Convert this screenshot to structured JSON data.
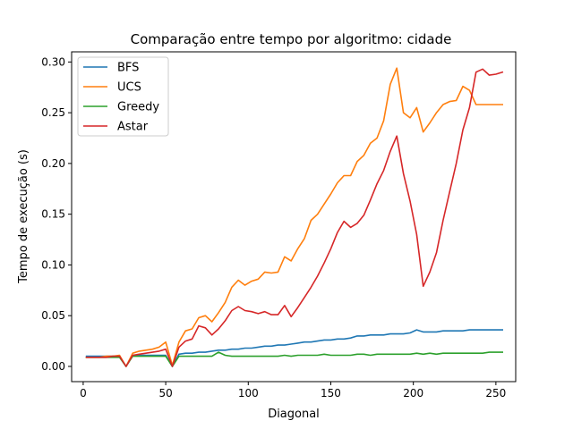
{
  "chart_data": {
    "type": "line",
    "title": "Comparação entre tempo por algoritmo: cidade",
    "xlabel": "Diagonal",
    "ylabel": "Tempo de execução (s)",
    "xlim": [
      -7,
      262
    ],
    "ylim": [
      -0.015,
      0.31
    ],
    "xticks": [
      0,
      50,
      100,
      150,
      200,
      250
    ],
    "yticks": [
      0.0,
      0.05,
      0.1,
      0.15,
      0.2,
      0.25,
      0.3
    ],
    "xtick_labels": [
      "0",
      "50",
      "100",
      "150",
      "200",
      "250"
    ],
    "ytick_labels": [
      "0.00",
      "0.05",
      "0.10",
      "0.15",
      "0.20",
      "0.25",
      "0.30"
    ],
    "grid": false,
    "legend_position": "top-left",
    "series": [
      {
        "name": "BFS",
        "color": "#1f77b4",
        "points": [
          [
            2,
            0.01
          ],
          [
            10,
            0.01
          ],
          [
            14,
            0.01
          ],
          [
            18,
            0.01
          ],
          [
            22,
            0.01
          ],
          [
            26,
            0.0
          ],
          [
            30,
            0.011
          ],
          [
            34,
            0.011
          ],
          [
            38,
            0.011
          ],
          [
            42,
            0.011
          ],
          [
            46,
            0.011
          ],
          [
            50,
            0.011
          ],
          [
            54,
            0.0
          ],
          [
            58,
            0.012
          ],
          [
            62,
            0.013
          ],
          [
            66,
            0.013
          ],
          [
            70,
            0.014
          ],
          [
            74,
            0.014
          ],
          [
            78,
            0.015
          ],
          [
            82,
            0.016
          ],
          [
            86,
            0.016
          ],
          [
            90,
            0.017
          ],
          [
            94,
            0.017
          ],
          [
            98,
            0.018
          ],
          [
            102,
            0.018
          ],
          [
            106,
            0.019
          ],
          [
            110,
            0.02
          ],
          [
            114,
            0.02
          ],
          [
            118,
            0.021
          ],
          [
            122,
            0.021
          ],
          [
            126,
            0.022
          ],
          [
            130,
            0.023
          ],
          [
            134,
            0.024
          ],
          [
            138,
            0.024
          ],
          [
            142,
            0.025
          ],
          [
            146,
            0.026
          ],
          [
            150,
            0.026
          ],
          [
            154,
            0.027
          ],
          [
            158,
            0.027
          ],
          [
            162,
            0.028
          ],
          [
            166,
            0.03
          ],
          [
            170,
            0.03
          ],
          [
            174,
            0.031
          ],
          [
            178,
            0.031
          ],
          [
            182,
            0.031
          ],
          [
            186,
            0.032
          ],
          [
            190,
            0.032
          ],
          [
            194,
            0.032
          ],
          [
            198,
            0.033
          ],
          [
            202,
            0.036
          ],
          [
            206,
            0.034
          ],
          [
            210,
            0.034
          ],
          [
            214,
            0.034
          ],
          [
            218,
            0.035
          ],
          [
            222,
            0.035
          ],
          [
            226,
            0.035
          ],
          [
            230,
            0.035
          ],
          [
            234,
            0.036
          ],
          [
            238,
            0.036
          ],
          [
            242,
            0.036
          ],
          [
            246,
            0.036
          ],
          [
            250,
            0.036
          ],
          [
            254,
            0.036
          ]
        ]
      },
      {
        "name": "UCS",
        "color": "#ff7f0e",
        "points": [
          [
            2,
            0.009
          ],
          [
            10,
            0.009
          ],
          [
            14,
            0.01
          ],
          [
            18,
            0.01
          ],
          [
            22,
            0.011
          ],
          [
            26,
            0.0
          ],
          [
            30,
            0.013
          ],
          [
            34,
            0.015
          ],
          [
            38,
            0.016
          ],
          [
            42,
            0.017
          ],
          [
            46,
            0.019
          ],
          [
            50,
            0.024
          ],
          [
            54,
            0.001
          ],
          [
            58,
            0.024
          ],
          [
            62,
            0.035
          ],
          [
            66,
            0.037
          ],
          [
            70,
            0.048
          ],
          [
            74,
            0.05
          ],
          [
            78,
            0.044
          ],
          [
            82,
            0.053
          ],
          [
            86,
            0.063
          ],
          [
            90,
            0.078
          ],
          [
            94,
            0.085
          ],
          [
            98,
            0.08
          ],
          [
            102,
            0.084
          ],
          [
            106,
            0.086
          ],
          [
            110,
            0.093
          ],
          [
            114,
            0.092
          ],
          [
            118,
            0.093
          ],
          [
            122,
            0.108
          ],
          [
            126,
            0.104
          ],
          [
            130,
            0.116
          ],
          [
            134,
            0.126
          ],
          [
            138,
            0.144
          ],
          [
            142,
            0.15
          ],
          [
            146,
            0.16
          ],
          [
            150,
            0.17
          ],
          [
            154,
            0.181
          ],
          [
            158,
            0.188
          ],
          [
            162,
            0.188
          ],
          [
            166,
            0.202
          ],
          [
            170,
            0.208
          ],
          [
            174,
            0.22
          ],
          [
            178,
            0.225
          ],
          [
            182,
            0.242
          ],
          [
            186,
            0.278
          ],
          [
            190,
            0.294
          ],
          [
            194,
            0.25
          ],
          [
            198,
            0.245
          ],
          [
            202,
            0.255
          ],
          [
            206,
            0.231
          ],
          [
            210,
            0.24
          ],
          [
            214,
            0.25
          ],
          [
            218,
            0.258
          ],
          [
            222,
            0.261
          ],
          [
            226,
            0.262
          ],
          [
            230,
            0.276
          ],
          [
            234,
            0.272
          ],
          [
            238,
            0.258
          ],
          [
            242,
            0.258
          ],
          [
            246,
            0.258
          ],
          [
            250,
            0.258
          ],
          [
            254,
            0.258
          ]
        ]
      },
      {
        "name": "Greedy",
        "color": "#2ca02c",
        "points": [
          [
            2,
            0.009
          ],
          [
            10,
            0.009
          ],
          [
            14,
            0.009
          ],
          [
            18,
            0.009
          ],
          [
            22,
            0.009
          ],
          [
            26,
            0.0
          ],
          [
            30,
            0.01
          ],
          [
            34,
            0.01
          ],
          [
            38,
            0.01
          ],
          [
            42,
            0.01
          ],
          [
            46,
            0.01
          ],
          [
            50,
            0.01
          ],
          [
            54,
            0.0
          ],
          [
            58,
            0.01
          ],
          [
            62,
            0.01
          ],
          [
            66,
            0.01
          ],
          [
            70,
            0.01
          ],
          [
            74,
            0.01
          ],
          [
            78,
            0.01
          ],
          [
            82,
            0.014
          ],
          [
            86,
            0.011
          ],
          [
            90,
            0.01
          ],
          [
            94,
            0.01
          ],
          [
            98,
            0.01
          ],
          [
            102,
            0.01
          ],
          [
            106,
            0.01
          ],
          [
            110,
            0.01
          ],
          [
            114,
            0.01
          ],
          [
            118,
            0.01
          ],
          [
            122,
            0.011
          ],
          [
            126,
            0.01
          ],
          [
            130,
            0.011
          ],
          [
            134,
            0.011
          ],
          [
            138,
            0.011
          ],
          [
            142,
            0.011
          ],
          [
            146,
            0.012
          ],
          [
            150,
            0.011
          ],
          [
            154,
            0.011
          ],
          [
            158,
            0.011
          ],
          [
            162,
            0.011
          ],
          [
            166,
            0.012
          ],
          [
            170,
            0.012
          ],
          [
            174,
            0.011
          ],
          [
            178,
            0.012
          ],
          [
            182,
            0.012
          ],
          [
            186,
            0.012
          ],
          [
            190,
            0.012
          ],
          [
            194,
            0.012
          ],
          [
            198,
            0.012
          ],
          [
            202,
            0.013
          ],
          [
            206,
            0.012
          ],
          [
            210,
            0.013
          ],
          [
            214,
            0.012
          ],
          [
            218,
            0.013
          ],
          [
            222,
            0.013
          ],
          [
            226,
            0.013
          ],
          [
            230,
            0.013
          ],
          [
            234,
            0.013
          ],
          [
            238,
            0.013
          ],
          [
            242,
            0.013
          ],
          [
            246,
            0.014
          ],
          [
            250,
            0.014
          ],
          [
            254,
            0.014
          ]
        ]
      },
      {
        "name": "Astar",
        "color": "#d62728",
        "points": [
          [
            2,
            0.009
          ],
          [
            10,
            0.009
          ],
          [
            14,
            0.009
          ],
          [
            18,
            0.01
          ],
          [
            22,
            0.01
          ],
          [
            26,
            0.0
          ],
          [
            30,
            0.011
          ],
          [
            34,
            0.012
          ],
          [
            38,
            0.013
          ],
          [
            42,
            0.014
          ],
          [
            46,
            0.015
          ],
          [
            50,
            0.017
          ],
          [
            54,
            0.0
          ],
          [
            58,
            0.019
          ],
          [
            62,
            0.025
          ],
          [
            66,
            0.027
          ],
          [
            70,
            0.04
          ],
          [
            74,
            0.038
          ],
          [
            78,
            0.031
          ],
          [
            82,
            0.037
          ],
          [
            86,
            0.045
          ],
          [
            90,
            0.055
          ],
          [
            94,
            0.059
          ],
          [
            98,
            0.055
          ],
          [
            102,
            0.054
          ],
          [
            106,
            0.052
          ],
          [
            110,
            0.054
          ],
          [
            114,
            0.051
          ],
          [
            118,
            0.051
          ],
          [
            122,
            0.06
          ],
          [
            126,
            0.049
          ],
          [
            130,
            0.058
          ],
          [
            134,
            0.068
          ],
          [
            138,
            0.078
          ],
          [
            142,
            0.089
          ],
          [
            146,
            0.102
          ],
          [
            150,
            0.116
          ],
          [
            154,
            0.132
          ],
          [
            158,
            0.143
          ],
          [
            162,
            0.137
          ],
          [
            166,
            0.141
          ],
          [
            170,
            0.149
          ],
          [
            174,
            0.164
          ],
          [
            178,
            0.18
          ],
          [
            182,
            0.193
          ],
          [
            186,
            0.212
          ],
          [
            190,
            0.227
          ],
          [
            194,
            0.19
          ],
          [
            198,
            0.163
          ],
          [
            202,
            0.13
          ],
          [
            206,
            0.079
          ],
          [
            210,
            0.093
          ],
          [
            214,
            0.112
          ],
          [
            218,
            0.144
          ],
          [
            222,
            0.172
          ],
          [
            226,
            0.2
          ],
          [
            230,
            0.233
          ],
          [
            234,
            0.255
          ],
          [
            238,
            0.29
          ],
          [
            242,
            0.293
          ],
          [
            246,
            0.287
          ],
          [
            250,
            0.288
          ],
          [
            254,
            0.29
          ]
        ]
      }
    ]
  }
}
